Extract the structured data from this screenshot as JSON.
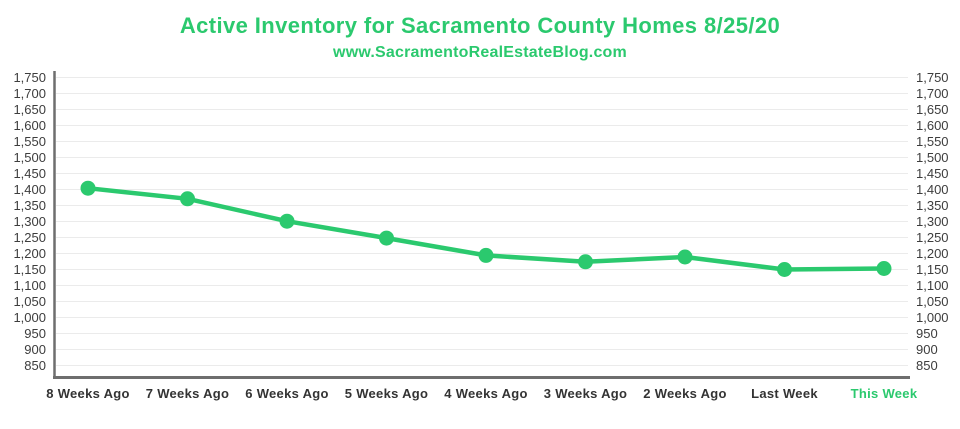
{
  "header": {
    "title": "Active Inventory for Sacramento County Homes 8/25/20",
    "subtitle": "www.SacramentoRealEstateBlog.com"
  },
  "colors": {
    "green": "#2bc96e",
    "axis_text": "#3d3d3d",
    "x_label_text": "#333333",
    "gridline": "#ebebeb",
    "axis_line": "#6e6e6e"
  },
  "chart_data": {
    "type": "line",
    "title": "Active Inventory for Sacramento County Homes 8/25/20",
    "subtitle": "www.SacramentoRealEstateBlog.com",
    "categories": [
      "8 Weeks Ago",
      "7 Weeks Ago",
      "6 Weeks Ago",
      "5 Weeks Ago",
      "4 Weeks Ago",
      "3 Weeks Ago",
      "2 Weeks Ago",
      "Last Week",
      "This Week"
    ],
    "series": [
      {
        "name": "Active Inventory",
        "values": [
          1404,
          1371,
          1301,
          1248,
          1194,
          1174,
          1189,
          1150,
          1153
        ]
      }
    ],
    "ylim": [
      850,
      1750
    ],
    "y_tick_step": 50,
    "y_tick_labels": [
      "850",
      "900",
      "950",
      "1,000",
      "1,050",
      "1,100",
      "1,150",
      "1,200",
      "1,250",
      "1,300",
      "1,350",
      "1,400",
      "1,450",
      "1,500",
      "1,550",
      "1,600",
      "1,650",
      "1,700",
      "1,750"
    ],
    "grid": true,
    "legend": "none",
    "y_axis_labels_both_sides": true,
    "highlighted_category": "This Week",
    "line_color": "#2bc96e",
    "marker": "circle"
  }
}
